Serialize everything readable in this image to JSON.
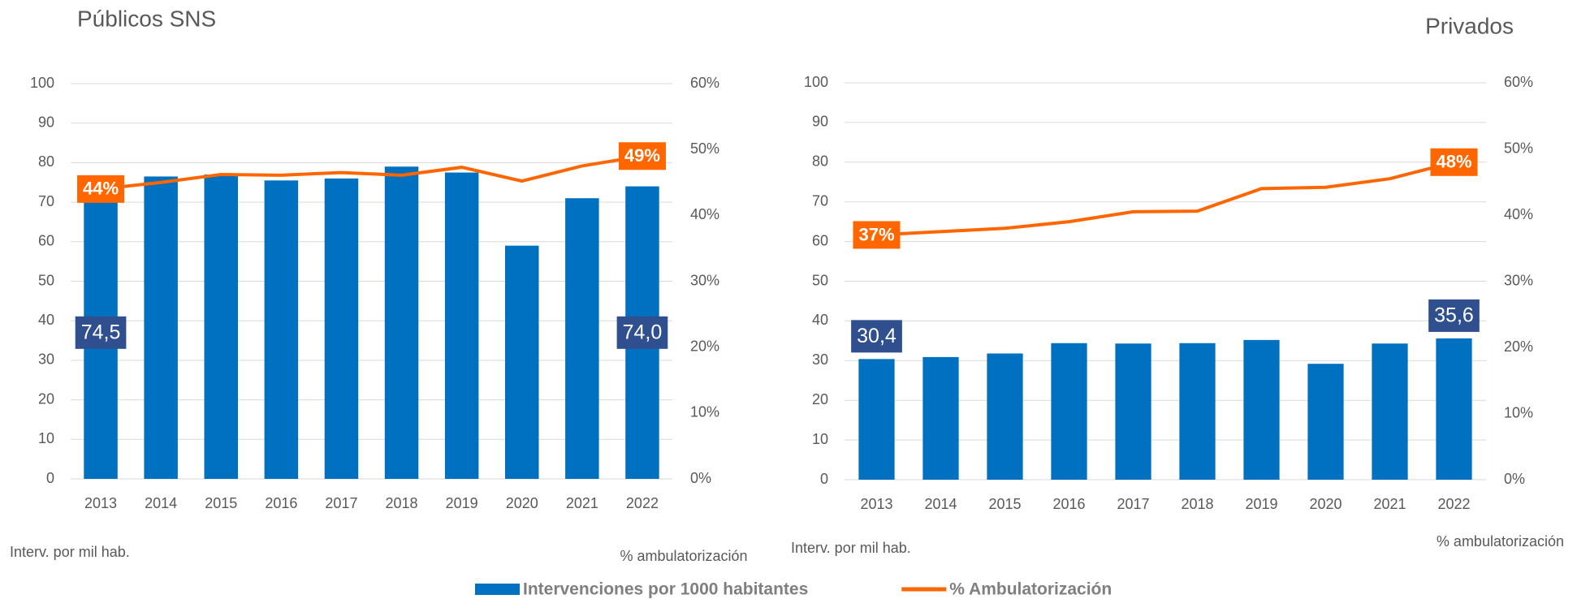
{
  "chart_data": [
    {
      "type": "bar-line",
      "title": "Públicos SNS",
      "categories": [
        "2013",
        "2014",
        "2015",
        "2016",
        "2017",
        "2018",
        "2019",
        "2020",
        "2021",
        "2022"
      ],
      "ylabel": "Interv. por mil hab.",
      "y2label": "% ambulatorización",
      "ylim": [
        0,
        100
      ],
      "yticks": [
        0,
        10,
        20,
        30,
        40,
        50,
        60,
        70,
        80,
        90,
        100
      ],
      "y2lim": [
        0,
        60
      ],
      "y2ticks": [
        {
          "value": 0,
          "label": "0%"
        },
        {
          "value": 10,
          "label": "10%"
        },
        {
          "value": 20,
          "label": "20%"
        },
        {
          "value": 30,
          "label": "30%"
        },
        {
          "value": 40,
          "label": "40%"
        },
        {
          "value": 50,
          "label": "50%"
        },
        {
          "value": 60,
          "label": "60%"
        }
      ],
      "grid": true,
      "series": [
        {
          "name": "Intervenciones por 1000 habitantes",
          "type": "bar",
          "color": "#0070c0",
          "values": [
            74.5,
            76.5,
            77,
            75.5,
            76,
            79,
            77.5,
            59,
            71,
            74.0
          ],
          "value_labels": [
            "74,5",
            null,
            null,
            null,
            null,
            null,
            null,
            null,
            null,
            "74,0"
          ]
        },
        {
          "name": "% Ambulatorización",
          "type": "line",
          "axis": "y2",
          "color": "#ff6600",
          "values": [
            44,
            45,
            46.2,
            46.1,
            46.5,
            46.1,
            47.3,
            45.2,
            47.5,
            49
          ],
          "value_labels": [
            "44%",
            null,
            null,
            null,
            null,
            null,
            null,
            null,
            null,
            "49%"
          ]
        }
      ]
    },
    {
      "type": "bar-line",
      "title": "Privados",
      "categories": [
        "2013",
        "2014",
        "2015",
        "2016",
        "2017",
        "2018",
        "2019",
        "2020",
        "2021",
        "2022"
      ],
      "ylabel": "Interv. por mil hab.",
      "y2label": "% ambulatorización",
      "ylim": [
        0,
        100
      ],
      "yticks": [
        0,
        10,
        20,
        30,
        40,
        50,
        60,
        70,
        80,
        90,
        100
      ],
      "y2lim": [
        0,
        60
      ],
      "y2ticks": [
        {
          "value": 0,
          "label": "0%"
        },
        {
          "value": 10,
          "label": "10%"
        },
        {
          "value": 20,
          "label": "20%"
        },
        {
          "value": 30,
          "label": "30%"
        },
        {
          "value": 40,
          "label": "40%"
        },
        {
          "value": 50,
          "label": "50%"
        },
        {
          "value": 60,
          "label": "60%"
        }
      ],
      "grid": true,
      "series": [
        {
          "name": "Intervenciones por 1000 habitantes",
          "type": "bar",
          "color": "#0070c0",
          "values": [
            30.4,
            30.9,
            31.8,
            34.4,
            34.3,
            34.4,
            35.2,
            29.2,
            34.3,
            35.6
          ],
          "value_labels": [
            "30,4",
            null,
            null,
            null,
            null,
            null,
            null,
            null,
            null,
            "35,6"
          ]
        },
        {
          "name": "% Ambulatorización",
          "type": "line",
          "axis": "y2",
          "color": "#ff6600",
          "values": [
            37,
            37.5,
            38,
            39,
            40.5,
            40.6,
            44,
            44.2,
            45.5,
            48
          ],
          "value_labels": [
            "37%",
            null,
            null,
            null,
            null,
            null,
            null,
            null,
            null,
            "48%"
          ]
        }
      ]
    }
  ]
}
